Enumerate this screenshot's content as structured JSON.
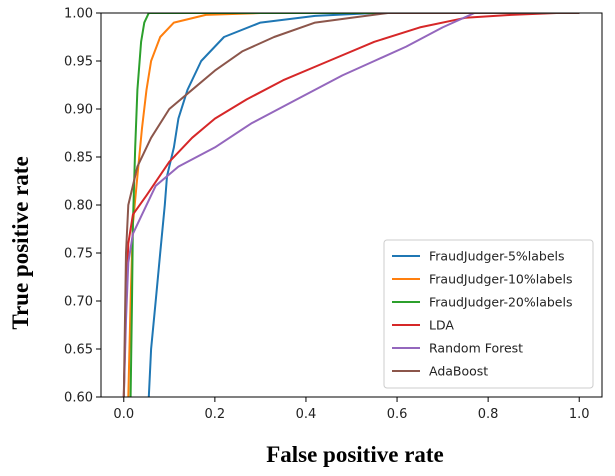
{
  "chart_data": {
    "type": "line",
    "title": "",
    "xlabel": "False positive rate",
    "ylabel": "True positive rate",
    "xlim": [
      -0.05,
      1.05
    ],
    "ylim": [
      0.6,
      1.0
    ],
    "x_ticks": [
      "0.0",
      "0.2",
      "0.4",
      "0.6",
      "0.8",
      "1.0"
    ],
    "y_ticks": [
      "1.00",
      "0.95",
      "0.90",
      "0.85",
      "0.80",
      "0.75",
      "0.70",
      "0.65",
      "0.60"
    ],
    "grid": false,
    "legend_position": "bottom-right",
    "series": [
      {
        "name": "FraudJudger-5%labels",
        "color": "#1f77b4",
        "points": [
          [
            0.055,
            0.6
          ],
          [
            0.06,
            0.65
          ],
          [
            0.07,
            0.7
          ],
          [
            0.08,
            0.75
          ],
          [
            0.09,
            0.8
          ],
          [
            0.095,
            0.83
          ],
          [
            0.11,
            0.86
          ],
          [
            0.12,
            0.89
          ],
          [
            0.14,
            0.92
          ],
          [
            0.17,
            0.95
          ],
          [
            0.22,
            0.975
          ],
          [
            0.3,
            0.99
          ],
          [
            0.42,
            0.997
          ],
          [
            0.55,
            1.0
          ],
          [
            1.0,
            1.0
          ]
        ]
      },
      {
        "name": "FraudJudger-10%labels",
        "color": "#ff7f0e",
        "points": [
          [
            0.01,
            0.6
          ],
          [
            0.015,
            0.7
          ],
          [
            0.02,
            0.78
          ],
          [
            0.03,
            0.83
          ],
          [
            0.04,
            0.88
          ],
          [
            0.05,
            0.92
          ],
          [
            0.06,
            0.95
          ],
          [
            0.08,
            0.975
          ],
          [
            0.11,
            0.99
          ],
          [
            0.18,
            0.998
          ],
          [
            0.3,
            1.0
          ],
          [
            1.0,
            1.0
          ]
        ]
      },
      {
        "name": "FraudJudger-20%labels",
        "color": "#2ca02c",
        "points": [
          [
            0.015,
            0.6
          ],
          [
            0.018,
            0.7
          ],
          [
            0.02,
            0.78
          ],
          [
            0.025,
            0.86
          ],
          [
            0.03,
            0.92
          ],
          [
            0.038,
            0.97
          ],
          [
            0.045,
            0.99
          ],
          [
            0.055,
            1.0
          ],
          [
            1.0,
            1.0
          ]
        ]
      },
      {
        "name": "LDA",
        "color": "#d62728",
        "points": [
          [
            0.0,
            0.6
          ],
          [
            0.005,
            0.7
          ],
          [
            0.01,
            0.76
          ],
          [
            0.02,
            0.79
          ],
          [
            0.05,
            0.81
          ],
          [
            0.1,
            0.845
          ],
          [
            0.15,
            0.87
          ],
          [
            0.2,
            0.89
          ],
          [
            0.27,
            0.91
          ],
          [
            0.35,
            0.93
          ],
          [
            0.45,
            0.95
          ],
          [
            0.55,
            0.97
          ],
          [
            0.65,
            0.985
          ],
          [
            0.75,
            0.995
          ],
          [
            0.85,
            0.998
          ],
          [
            0.95,
            1.0
          ],
          [
            1.0,
            1.0
          ]
        ]
      },
      {
        "name": "Random Forest",
        "color": "#9467bd",
        "points": [
          [
            0.0,
            0.6
          ],
          [
            0.005,
            0.68
          ],
          [
            0.01,
            0.74
          ],
          [
            0.02,
            0.77
          ],
          [
            0.04,
            0.79
          ],
          [
            0.07,
            0.82
          ],
          [
            0.12,
            0.84
          ],
          [
            0.2,
            0.86
          ],
          [
            0.28,
            0.885
          ],
          [
            0.38,
            0.91
          ],
          [
            0.48,
            0.935
          ],
          [
            0.55,
            0.95
          ],
          [
            0.62,
            0.965
          ],
          [
            0.7,
            0.985
          ],
          [
            0.77,
            1.0
          ],
          [
            1.0,
            1.0
          ]
        ]
      },
      {
        "name": "AdaBoost",
        "color": "#8c564b",
        "points": [
          [
            0.0,
            0.6
          ],
          [
            0.005,
            0.75
          ],
          [
            0.01,
            0.8
          ],
          [
            0.03,
            0.84
          ],
          [
            0.06,
            0.87
          ],
          [
            0.1,
            0.9
          ],
          [
            0.15,
            0.92
          ],
          [
            0.2,
            0.94
          ],
          [
            0.26,
            0.96
          ],
          [
            0.33,
            0.975
          ],
          [
            0.42,
            0.99
          ],
          [
            0.5,
            0.995
          ],
          [
            0.58,
            1.0
          ],
          [
            1.0,
            1.0
          ]
        ]
      }
    ]
  }
}
